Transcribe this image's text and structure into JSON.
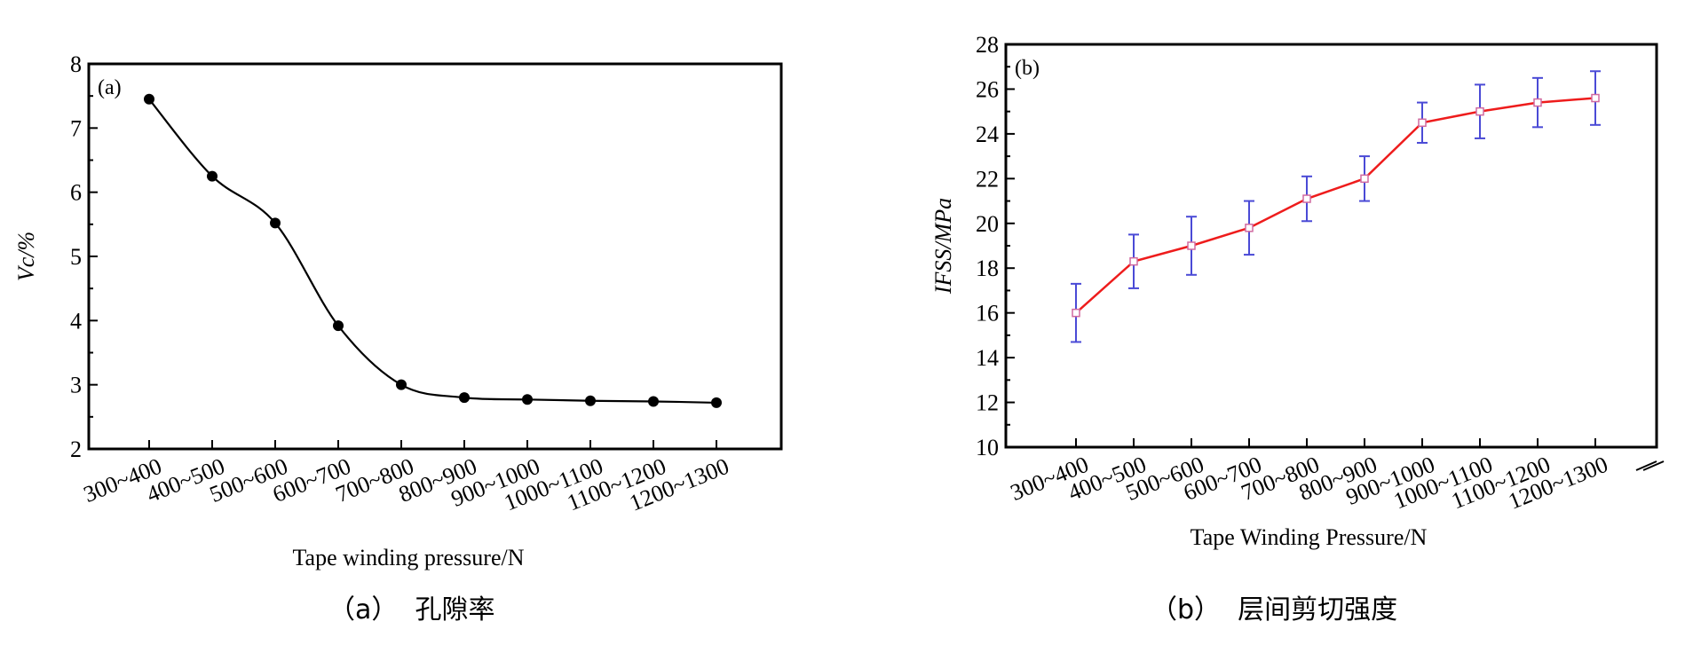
{
  "chart_data": [
    {
      "type": "line",
      "panel_label": "(a)",
      "xlabel": "Tape winding pressure/N",
      "ylabel": "Vc/%",
      "categories": [
        "300~400",
        "400~500",
        "500~600",
        "600~700",
        "700~800",
        "800~900",
        "900~1000",
        "1000~1100",
        "1100~1200",
        "1200~1300"
      ],
      "values": [
        7.45,
        6.25,
        5.52,
        3.92,
        3.0,
        2.8,
        2.77,
        2.75,
        2.74,
        2.72
      ],
      "ylim": [
        2,
        8
      ],
      "yticks": [
        2,
        3,
        4,
        5,
        6,
        7,
        8
      ],
      "marker": "filled-circle",
      "line": "smooth-fit",
      "colors": {
        "line": "#000000",
        "marker": "#000000"
      },
      "grid": false,
      "caption": "（a）  孔隙率"
    },
    {
      "type": "line",
      "panel_label": "(b)",
      "xlabel": "Tape Winding Pressure/N",
      "ylabel": "IFSS/MPa",
      "categories": [
        "300~400",
        "400~500",
        "500~600",
        "600~700",
        "700~800",
        "800~900",
        "900~1000",
        "1000~1100",
        "1100~1200",
        "1200~1300"
      ],
      "values": [
        16.0,
        18.3,
        19.0,
        19.8,
        21.1,
        22.0,
        24.5,
        25.0,
        25.4,
        25.6
      ],
      "error": [
        1.3,
        1.2,
        1.3,
        1.2,
        1.0,
        1.0,
        0.9,
        1.2,
        1.1,
        1.2
      ],
      "ylim": [
        10,
        28
      ],
      "yticks": [
        10,
        12,
        14,
        16,
        18,
        20,
        22,
        24,
        26,
        28
      ],
      "marker": "open-square",
      "colors": {
        "line": "#ee1c1c",
        "marker": "#d06aa0",
        "error": "#4a4ad6"
      },
      "grid": false,
      "caption": "（b）  层间剪切强度"
    }
  ]
}
